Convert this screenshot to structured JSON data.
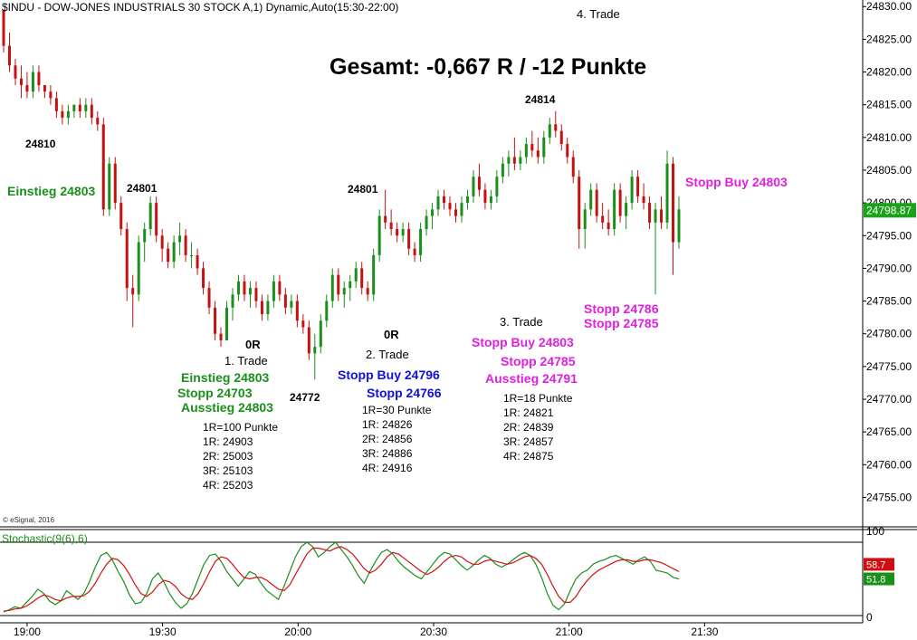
{
  "header": {
    "symbol_line": "$INDU - DOW-JONES INDUSTRIALS 30 STOCK A,1) Dynamic,Auto(15:30-22:00)",
    "copyright": "© eSignal, 2016",
    "summary": "Gesamt: -0,667 R / -12 Punkte"
  },
  "chart_data": {
    "type": "candlestick",
    "price_axis": {
      "ylim": [
        24750.5,
        24831
      ],
      "ticks": [
        "24830.00",
        "24825.00",
        "24820.00",
        "24815.00",
        "24810.00",
        "24805.00",
        "24800.00",
        "24795.00",
        "24790.00",
        "24785.00",
        "24780.00",
        "24775.00",
        "24770.00",
        "24765.00",
        "24760.00",
        "24755.00"
      ],
      "last_price": "24798.87",
      "last_price_value": 24798.87,
      "last_price_color": "#1aa31a"
    },
    "time_axis": {
      "labels": [
        {
          "text": "19:00",
          "minute": 0
        },
        {
          "text": "19:30",
          "minute": 30
        },
        {
          "text": "20:00",
          "minute": 60
        },
        {
          "text": "20:30",
          "minute": 90
        },
        {
          "text": "21:00",
          "minute": 120
        },
        {
          "text": "21:30",
          "minute": 150
        }
      ],
      "start_minute": -6,
      "end_minute": 185
    },
    "candles": [
      [
        24829.5,
        24829.5,
        24823,
        24824
      ],
      [
        24824,
        24826,
        24820,
        24821
      ],
      [
        24821,
        24822,
        24818,
        24819
      ],
      [
        24819,
        24821,
        24816,
        24818
      ],
      [
        24818,
        24820,
        24816,
        24817
      ],
      [
        24817,
        24821,
        24816,
        24820
      ],
      [
        24820,
        24821,
        24817,
        24818
      ],
      [
        24818,
        24818,
        24816,
        24817
      ],
      [
        24817,
        24818,
        24815,
        24816
      ],
      [
        24816,
        24817,
        24813,
        24814
      ],
      [
        24814,
        24815,
        24812,
        24813
      ],
      [
        24813,
        24815,
        24812,
        24814
      ],
      [
        24814,
        24815,
        24813,
        24815
      ],
      [
        24815,
        24816,
        24813,
        24814
      ],
      [
        24814,
        24816,
        24813,
        24815
      ],
      [
        24815,
        24816,
        24812,
        24813
      ],
      [
        24813,
        24814,
        24811,
        24812
      ],
      [
        24812,
        24813,
        24798,
        24799
      ],
      [
        24799,
        24807,
        24798,
        24806
      ],
      [
        24806,
        24807,
        24799,
        24800
      ],
      [
        24800,
        24801,
        24795,
        24796
      ],
      [
        24796,
        24797,
        24785,
        24787
      ],
      [
        24787,
        24789,
        24781,
        24786
      ],
      [
        24786,
        24795,
        24785,
        24794
      ],
      [
        24794,
        24797,
        24791,
        24796
      ],
      [
        24796,
        24801,
        24795,
        24800
      ],
      [
        24800,
        24801,
        24794,
        24795
      ],
      [
        24795,
        24796,
        24791,
        24793
      ],
      [
        24793,
        24794,
        24790,
        24791
      ],
      [
        24791,
        24795,
        24790,
        24794
      ],
      [
        24794,
        24797,
        24792,
        24795
      ],
      [
        24795,
        24796,
        24791,
        24792
      ],
      [
        24792,
        24794,
        24790,
        24792
      ],
      [
        24792,
        24793,
        24789,
        24790
      ],
      [
        24790,
        24791,
        24786,
        24787
      ],
      [
        24787,
        24788,
        24783,
        24784
      ],
      [
        24784,
        24785,
        24779,
        24780
      ],
      [
        24780,
        24781,
        24778,
        24779
      ],
      [
        24779,
        24785,
        24779,
        24784
      ],
      [
        24784,
        24787,
        24782,
        24786
      ],
      [
        24786,
        24789,
        24785,
        24788
      ],
      [
        24788,
        24789,
        24785,
        24786
      ],
      [
        24786,
        24788,
        24784,
        24787
      ],
      [
        24787,
        24788,
        24784,
        24785
      ],
      [
        24785,
        24786,
        24782,
        24783
      ],
      [
        24783,
        24786,
        24782,
        24785
      ],
      [
        24785,
        24789,
        24784,
        24788
      ],
      [
        24788,
        24789,
        24785,
        24786
      ],
      [
        24786,
        24787,
        24783,
        24784
      ],
      [
        24784,
        24786,
        24783,
        24785
      ],
      [
        24785,
        24786,
        24781,
        24782
      ],
      [
        24782,
        24783,
        24780,
        24781
      ],
      [
        24781,
        24782,
        24776,
        24777
      ],
      [
        24777,
        24780,
        24773,
        24778
      ],
      [
        24778,
        24783,
        24777,
        24782
      ],
      [
        24782,
        24786,
        24781,
        24785
      ],
      [
        24785,
        24790,
        24784,
        24789
      ],
      [
        24789,
        24790,
        24785,
        24786
      ],
      [
        24786,
        24788,
        24784,
        24787
      ],
      [
        24787,
        24789,
        24785,
        24788
      ],
      [
        24788,
        24791,
        24787,
        24790
      ],
      [
        24790,
        24791,
        24786,
        24787
      ],
      [
        24787,
        24788,
        24785,
        24786
      ],
      [
        24786,
        24793,
        24785,
        24792
      ],
      [
        24792,
        24799,
        24791,
        24798
      ],
      [
        24798,
        24802,
        24796,
        24797
      ],
      [
        24797,
        24799,
        24795,
        24796
      ],
      [
        24796,
        24797,
        24794,
        24795
      ],
      [
        24795,
        24797,
        24794,
        24796
      ],
      [
        24796,
        24797,
        24792,
        24793
      ],
      [
        24793,
        24794,
        24791,
        24792
      ],
      [
        24792,
        24797,
        24791,
        24796
      ],
      [
        24796,
        24799,
        24795,
        24798
      ],
      [
        24798,
        24800,
        24796,
        24799
      ],
      [
        24799,
        24802,
        24798,
        24801
      ],
      [
        24801,
        24802,
        24799,
        24800
      ],
      [
        24800,
        24801,
        24798,
        24799
      ],
      [
        24799,
        24800,
        24797,
        24798
      ],
      [
        24798,
        24801,
        24797,
        24800
      ],
      [
        24800,
        24802,
        24799,
        24801
      ],
      [
        24801,
        24805,
        24800,
        24804
      ],
      [
        24804,
        24806,
        24801,
        24802
      ],
      [
        24802,
        24803,
        24799,
        24800
      ],
      [
        24800,
        24802,
        24799,
        24801
      ],
      [
        24801,
        24805,
        24800,
        24804
      ],
      [
        24804,
        24807,
        24803,
        24806
      ],
      [
        24806,
        24808,
        24804,
        24807
      ],
      [
        24807,
        24810,
        24805,
        24806
      ],
      [
        24806,
        24808,
        24805,
        24807
      ],
      [
        24807,
        24810,
        24806,
        24809
      ],
      [
        24809,
        24811,
        24807,
        24808
      ],
      [
        24808,
        24810,
        24806,
        24807
      ],
      [
        24807,
        24811,
        24806,
        24810
      ],
      [
        24810,
        24813,
        24809,
        24812
      ],
      [
        24812,
        24814,
        24810,
        24811
      ],
      [
        24811,
        24812,
        24808,
        24809
      ],
      [
        24809,
        24810,
        24806,
        24807
      ],
      [
        24807,
        24808,
        24803,
        24804
      ],
      [
        24804,
        24805,
        24793,
        24796
      ],
      [
        24796,
        24800,
        24793,
        24799
      ],
      [
        24799,
        24803,
        24798,
        24802
      ],
      [
        24802,
        24803,
        24797,
        24798
      ],
      [
        24798,
        24800,
        24796,
        24797
      ],
      [
        24797,
        24799,
        24795,
        24796
      ],
      [
        24796,
        24803,
        24795,
        24802
      ],
      [
        24802,
        24803,
        24797,
        24798
      ],
      [
        24798,
        24801,
        24796,
        24800
      ],
      [
        24800,
        24805,
        24799,
        24804
      ],
      [
        24804,
        24805,
        24800,
        24801
      ],
      [
        24801,
        24803,
        24799,
        24800
      ],
      [
        24800,
        24801,
        24796,
        24797
      ],
      [
        24797,
        24800,
        24786,
        24799
      ],
      [
        24799,
        24801,
        24796,
        24797
      ],
      [
        24797,
        24808,
        24796,
        24806
      ],
      [
        24806,
        24807,
        24789,
        24794
      ],
      [
        24794,
        24801,
        24793,
        24799
      ]
    ]
  },
  "stochastic": {
    "label": "Stochastic(9(6),6)",
    "levels": [
      "100",
      "0"
    ],
    "value_red": "58.7",
    "value_green": "51.8",
    "k_values": [
      5,
      8,
      12,
      10,
      18,
      26,
      36,
      30,
      20,
      15,
      20,
      34,
      28,
      22,
      30,
      46,
      66,
      82,
      86,
      76,
      60,
      46,
      28,
      16,
      18,
      30,
      50,
      58,
      46,
      30,
      18,
      10,
      16,
      30,
      50,
      70,
      82,
      84,
      74,
      60,
      50,
      40,
      50,
      60,
      56,
      44,
      34,
      28,
      22,
      40,
      60,
      80,
      94,
      100,
      94,
      80,
      86,
      94,
      100,
      90,
      80,
      68,
      54,
      44,
      60,
      74,
      86,
      90,
      84,
      74,
      66,
      60,
      54,
      50,
      60,
      70,
      80,
      86,
      84,
      76,
      68,
      62,
      68,
      76,
      82,
      78,
      70,
      66,
      70,
      76,
      82,
      86,
      82,
      70,
      52,
      30,
      14,
      8,
      16,
      34,
      50,
      58,
      62,
      70,
      74,
      76,
      80,
      82,
      78,
      74,
      70,
      76,
      80,
      74,
      62,
      60,
      58,
      52,
      50
    ],
    "d_values": [
      6,
      7,
      9,
      10,
      13,
      18,
      24,
      28,
      26,
      22,
      20,
      24,
      26,
      26,
      27,
      33,
      44,
      58,
      70,
      78,
      76,
      68,
      56,
      42,
      30,
      26,
      32,
      42,
      48,
      46,
      40,
      30,
      24,
      22,
      30,
      44,
      60,
      74,
      80,
      78,
      70,
      60,
      52,
      50,
      52,
      52,
      48,
      42,
      36,
      34,
      42,
      56,
      70,
      84,
      92,
      92,
      90,
      88,
      92,
      94,
      90,
      84,
      74,
      64,
      58,
      62,
      70,
      80,
      86,
      84,
      78,
      72,
      66,
      60,
      56,
      60,
      66,
      74,
      80,
      82,
      80,
      74,
      70,
      70,
      74,
      76,
      74,
      72,
      70,
      72,
      76,
      80,
      82,
      78,
      70,
      56,
      40,
      26,
      18,
      18,
      26,
      38,
      48,
      56,
      62,
      66,
      70,
      74,
      76,
      76,
      74,
      74,
      76,
      76,
      74,
      72,
      68,
      64,
      60
    ]
  },
  "annotations": {
    "p24810": "24810",
    "p24801a": "24801",
    "einstieg_left": "Einstieg 24803",
    "or1": "0R",
    "trade1": "1. Trade",
    "t1_einstieg": "Einstieg 24803",
    "t1_stopp": "Stopp 24703",
    "t1_ausstieg": "Ausstieg 24803",
    "t1_r": "1R=100 Punkte",
    "t1_1r": "1R: 24903",
    "t1_2r": "2R: 25003",
    "t1_3r": "3R: 25103",
    "t1_4r": "4R: 25203",
    "p24772": "24772",
    "p24801b": "24801",
    "or2": "0R",
    "trade2": "2. Trade",
    "t2_stopp_buy": "Stopp Buy 24796",
    "t2_stopp": "Stopp 24766",
    "t2_r": "1R=30 Punkte",
    "t2_1r": "1R: 24826",
    "t2_2r": "2R: 24856",
    "t2_3r": "3R: 24886",
    "t2_4r": "4R: 24916",
    "p24814": "24814",
    "trade3": "3. Trade",
    "t3_stopp_buy": "Stopp Buy 24803",
    "t3_stopp": "Stopp 24785",
    "t3_ausstieg": "Ausstieg 24791",
    "t3_r": "1R=18 Punkte",
    "t3_1r": "1R: 24821",
    "t3_2r": "2R: 24839",
    "t3_3r": "3R: 24857",
    "t3_4r": "4R: 24875",
    "trade4": "4. Trade",
    "t4_stopp_buy": "Stopp Buy 24803",
    "t4_stopp1": "Stopp 24786",
    "t4_stopp2": "Stopp 24785"
  },
  "colors": {
    "up": "#1a8f1a",
    "down": "#c81010",
    "k_line": "#1a8f1a",
    "d_line": "#d01010"
  }
}
